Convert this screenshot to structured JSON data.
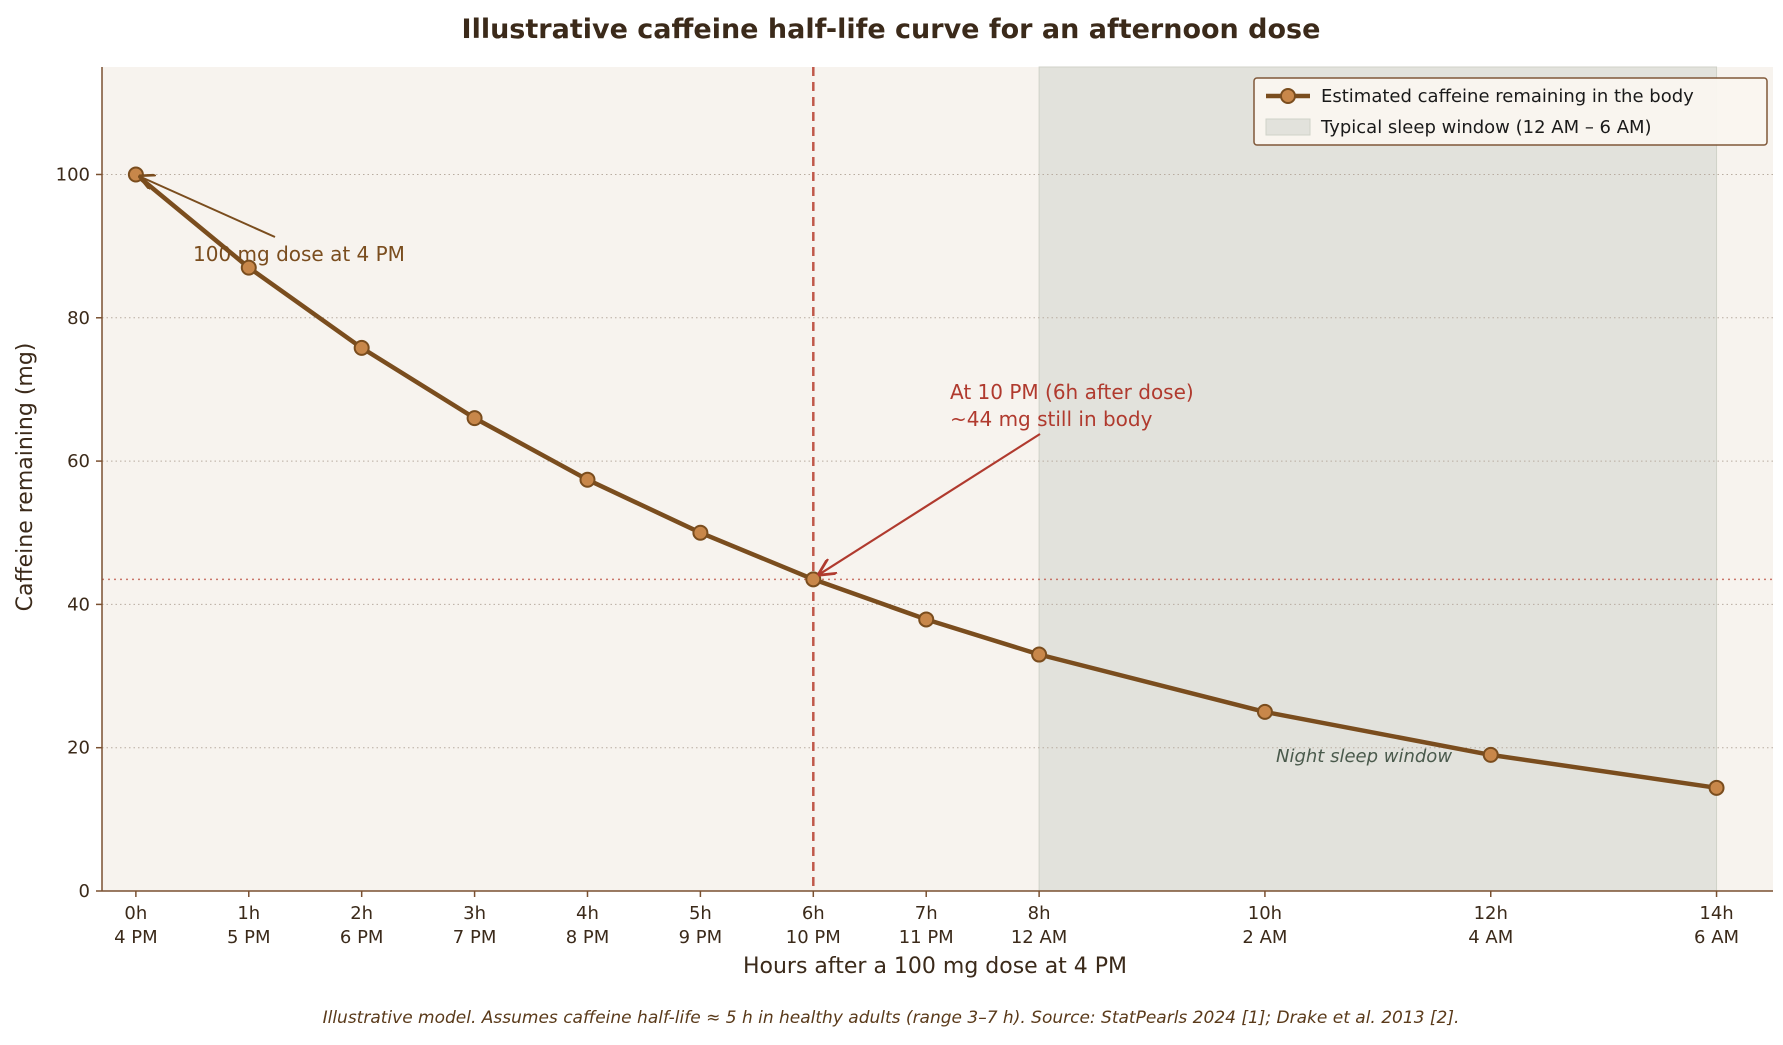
{
  "colors": {
    "plot_bg": "#f7f3ee",
    "sleep_band": "#e2e2dc",
    "line": "#7a4d1e",
    "marker_fill": "#c8874a",
    "ref_line": "#c0584a",
    "axis": "#7a5030",
    "grid": "#b8aca0"
  },
  "chart_data": {
    "type": "line",
    "title": "Illustrative caffeine half-life curve for an afternoon dose",
    "xlabel": "Hours after a 100 mg dose at 4 PM",
    "ylabel": "Caffeine remaining (mg)",
    "xlim": [
      -0.3,
      14.5
    ],
    "ylim": [
      0,
      115
    ],
    "grid": "horizontal dotted",
    "legend_position": "top-right",
    "series": [
      {
        "name": "Estimated caffeine remaining in the body",
        "x": [
          0,
          1,
          2,
          3,
          4,
          5,
          6,
          7,
          8,
          10,
          12,
          14
        ],
        "y": [
          100,
          87,
          75.8,
          66,
          57.4,
          50,
          43.5,
          37.9,
          33,
          25,
          19,
          14.4
        ]
      }
    ],
    "sleep_window": {
      "label": "Typical sleep window (12 AM – 6 AM)",
      "x_start": 8,
      "x_end": 14
    },
    "reference_lines": {
      "vertical_x": 6,
      "horizontal_y": 43.5
    },
    "x_ticks": [
      {
        "value": 0,
        "line1": "0h",
        "line2": "4 PM"
      },
      {
        "value": 1,
        "line1": "1h",
        "line2": "5 PM"
      },
      {
        "value": 2,
        "line1": "2h",
        "line2": "6 PM"
      },
      {
        "value": 3,
        "line1": "3h",
        "line2": "7 PM"
      },
      {
        "value": 4,
        "line1": "4h",
        "line2": "8 PM"
      },
      {
        "value": 5,
        "line1": "5h",
        "line2": "9 PM"
      },
      {
        "value": 6,
        "line1": "6h",
        "line2": "10 PM"
      },
      {
        "value": 7,
        "line1": "7h",
        "line2": "11 PM"
      },
      {
        "value": 8,
        "line1": "8h",
        "line2": "12 AM"
      },
      {
        "value": 10,
        "line1": "10h",
        "line2": "2 AM"
      },
      {
        "value": 12,
        "line1": "12h",
        "line2": "4 AM"
      },
      {
        "value": 14,
        "line1": "14h",
        "line2": "6 AM"
      }
    ],
    "y_ticks": [
      0,
      20,
      40,
      60,
      80,
      100
    ],
    "annotations": [
      {
        "id": "dose",
        "lines": [
          "100 mg dose at 4 PM"
        ],
        "point_x": 0,
        "point_y": 100
      },
      {
        "id": "ten_pm",
        "lines": [
          "At 10 PM (6h after dose)",
          "~44 mg still in body"
        ],
        "point_x": 6,
        "point_y": 43.5
      },
      {
        "id": "sleep",
        "lines": [
          "Night sleep window"
        ]
      }
    ],
    "footnote": "Illustrative model. Assumes caffeine half-life ≈ 5 h in healthy adults (range 3–7 h). Source: StatPearls 2024 [1]; Drake et al. 2013 [2]."
  }
}
